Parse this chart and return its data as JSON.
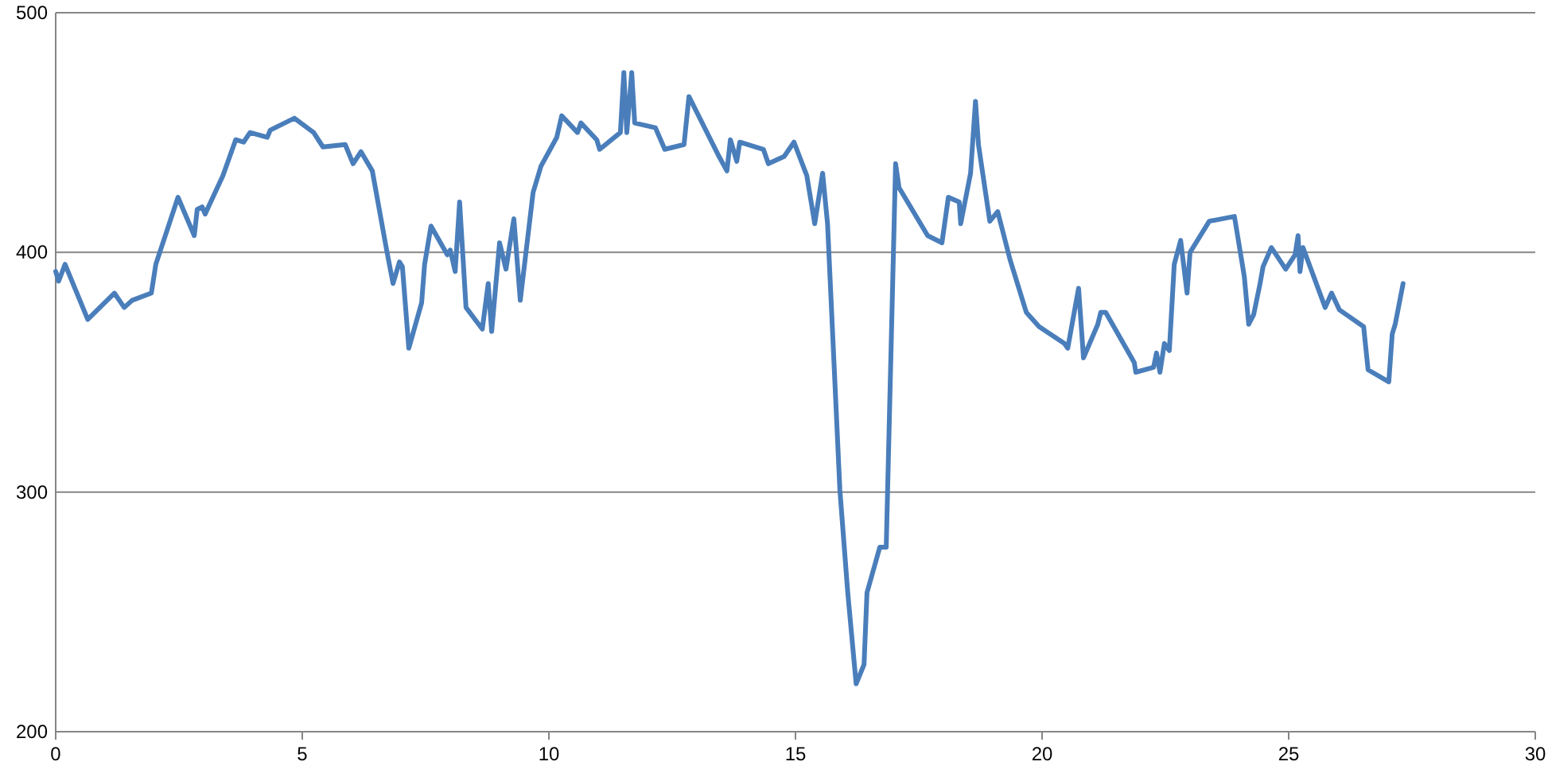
{
  "chart_data": {
    "type": "line",
    "color": "#4a7ebb",
    "x": [
      0,
      0.06,
      0.19,
      0.65,
      1.19,
      1.39,
      1.55,
      1.94,
      2.03,
      2.48,
      2.81,
      2.87,
      2.97,
      3.03,
      3.39,
      3.65,
      3.81,
      3.94,
      4.29,
      4.35,
      4.84,
      5.23,
      5.42,
      5.87,
      6.03,
      6.19,
      6.42,
      6.71,
      6.84,
      6.97,
      7.03,
      7.16,
      7.42,
      7.48,
      7.61,
      7.94,
      8.0,
      8.1,
      8.19,
      8.32,
      8.65,
      8.77,
      8.84,
      9.0,
      9.13,
      9.29,
      9.42,
      9.68,
      9.84,
      10.16,
      10.26,
      10.58,
      10.65,
      10.97,
      11.03,
      11.45,
      11.52,
      11.58,
      11.68,
      11.74,
      12.16,
      12.35,
      12.74,
      12.84,
      13.45,
      13.61,
      13.68,
      13.81,
      13.87,
      14.35,
      14.45,
      14.77,
      14.97,
      15.23,
      15.39,
      15.55,
      15.65,
      15.9,
      16.06,
      16.23,
      16.39,
      16.45,
      16.71,
      16.84,
      17.03,
      17.1,
      17.68,
      17.97,
      18.1,
      18.32,
      18.35,
      18.55,
      18.65,
      18.71,
      18.94,
      19.1,
      19.35,
      19.68,
      19.94,
      20.45,
      20.52,
      20.74,
      20.84,
      21.13,
      21.19,
      21.29,
      21.87,
      21.9,
      22.26,
      22.32,
      22.39,
      22.48,
      22.58,
      22.68,
      22.81,
      22.94,
      23.0,
      23.39,
      23.9,
      24.1,
      24.19,
      24.29,
      24.42,
      24.48,
      24.65,
      24.94,
      25.13,
      25.19,
      25.23,
      25.29,
      25.74,
      25.87,
      26.03,
      26.52,
      26.61,
      27.03,
      27.1,
      27.16,
      27.32
    ],
    "values": [
      392,
      388,
      395,
      372,
      383,
      377,
      380,
      383,
      395,
      423,
      407,
      418,
      419,
      416,
      432,
      447,
      446,
      450,
      448,
      451,
      456,
      450,
      444,
      445,
      437,
      442,
      434,
      401,
      387,
      396,
      394,
      360,
      379,
      395,
      411,
      399,
      401,
      392,
      421,
      377,
      368,
      387,
      367,
      404,
      393,
      414,
      380,
      425,
      436,
      448,
      457,
      450,
      454,
      447,
      443,
      450,
      475,
      450,
      475,
      454,
      452,
      443,
      445,
      465,
      440,
      434,
      447,
      438,
      446,
      443,
      437,
      440,
      446,
      432,
      412,
      433,
      412,
      301,
      258,
      220,
      228,
      258,
      277,
      277,
      437,
      427,
      407,
      404,
      423,
      421,
      412,
      433,
      463,
      445,
      413,
      417,
      397,
      375,
      369,
      362,
      360,
      385,
      356,
      370,
      375,
      375,
      354,
      350,
      352,
      358,
      350,
      362,
      359,
      395,
      405,
      383,
      400,
      413,
      415,
      390,
      370,
      374,
      387,
      394,
      402,
      393,
      399,
      407,
      392,
      402,
      377,
      383,
      376,
      369,
      351,
      346,
      366,
      370,
      387
    ],
    "xlim": [
      0,
      30
    ],
    "xticks": [
      0,
      5,
      10,
      15,
      20,
      25,
      30
    ],
    "ylim": [
      200,
      500
    ],
    "yticks": [
      200,
      300,
      400,
      500
    ],
    "grid": "y",
    "line_style": "solid",
    "marker": "none"
  }
}
